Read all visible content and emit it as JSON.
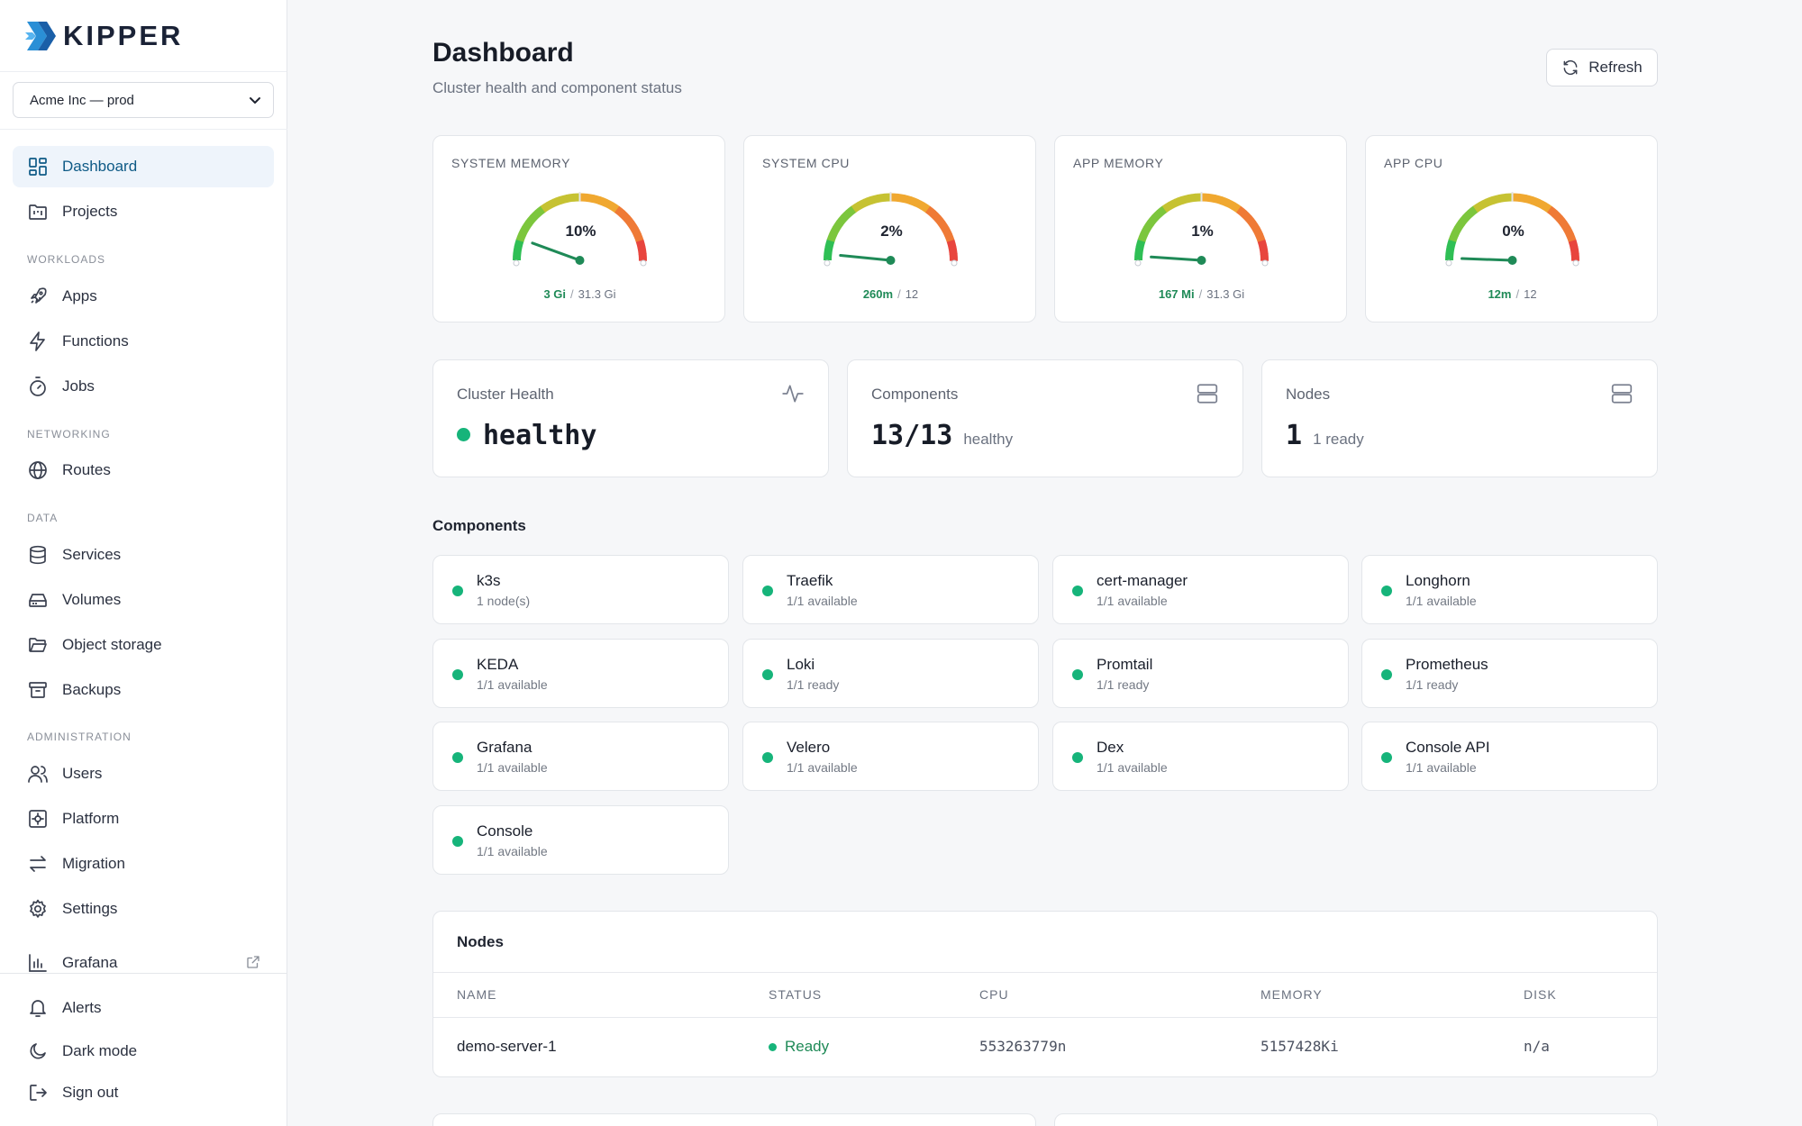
{
  "brand": {
    "name": "KIPPER",
    "logo_icon": "kipper-logo-icon"
  },
  "org_select": {
    "value": "Acme Inc — prod"
  },
  "sidebar": {
    "sections": {
      "workloads": "WORKLOADS",
      "networking": "NETWORKING",
      "data": "DATA",
      "administration": "ADMINISTRATION"
    },
    "items": [
      {
        "label": "Dashboard",
        "icon": "dashboard-icon",
        "active": true
      },
      {
        "label": "Projects",
        "icon": "folder-kanban-icon"
      },
      {
        "label": "Apps",
        "icon": "rocket-icon"
      },
      {
        "label": "Functions",
        "icon": "zap-icon"
      },
      {
        "label": "Jobs",
        "icon": "timer-icon"
      },
      {
        "label": "Routes",
        "icon": "globe-icon"
      },
      {
        "label": "Services",
        "icon": "database-icon"
      },
      {
        "label": "Volumes",
        "icon": "hard-drive-icon"
      },
      {
        "label": "Object storage",
        "icon": "folder-open-icon"
      },
      {
        "label": "Backups",
        "icon": "archive-icon"
      },
      {
        "label": "Users",
        "icon": "users-icon"
      },
      {
        "label": "Platform",
        "icon": "platform-icon"
      },
      {
        "label": "Migration",
        "icon": "arrows-left-right-icon"
      },
      {
        "label": "Settings",
        "icon": "gear-icon"
      },
      {
        "label": "Grafana",
        "icon": "bar-chart-icon",
        "external": true
      }
    ],
    "bottom": [
      {
        "label": "Alerts",
        "icon": "bell-icon"
      },
      {
        "label": "Dark mode",
        "icon": "moon-icon"
      },
      {
        "label": "Sign out",
        "icon": "sign-out-icon"
      }
    ]
  },
  "header": {
    "title": "Dashboard",
    "subtitle": "Cluster health and component status",
    "refresh_label": "Refresh"
  },
  "gauges": [
    {
      "title": "SYSTEM MEMORY",
      "percent_label": "10%",
      "percent": 10,
      "used": "3 Gi",
      "total": "31.3 Gi"
    },
    {
      "title": "SYSTEM CPU",
      "percent_label": "2%",
      "percent": 2,
      "used": "260m",
      "total": "12"
    },
    {
      "title": "APP MEMORY",
      "percent_label": "1%",
      "percent": 1,
      "used": "167 Mi",
      "total": "31.3 Gi"
    },
    {
      "title": "APP CPU",
      "percent_label": "0%",
      "percent": 0,
      "used": "12m",
      "total": "12"
    }
  ],
  "stats": {
    "cluster_health": {
      "title": "Cluster Health",
      "value": "healthy",
      "icon": "activity-icon"
    },
    "components": {
      "title": "Components",
      "value": "13/13",
      "suffix": "healthy",
      "icon": "server-icon"
    },
    "nodes": {
      "title": "Nodes",
      "value": "1",
      "suffix": "1 ready",
      "icon": "server-icon"
    }
  },
  "components": {
    "title": "Components",
    "items": [
      {
        "name": "k3s",
        "status": "1 node(s)"
      },
      {
        "name": "Traefik",
        "status": "1/1 available"
      },
      {
        "name": "cert-manager",
        "status": "1/1 available"
      },
      {
        "name": "Longhorn",
        "status": "1/1 available"
      },
      {
        "name": "KEDA",
        "status": "1/1 available"
      },
      {
        "name": "Loki",
        "status": "1/1 ready"
      },
      {
        "name": "Promtail",
        "status": "1/1 ready"
      },
      {
        "name": "Prometheus",
        "status": "1/1 ready"
      },
      {
        "name": "Grafana",
        "status": "1/1 available"
      },
      {
        "name": "Velero",
        "status": "1/1 available"
      },
      {
        "name": "Dex",
        "status": "1/1 available"
      },
      {
        "name": "Console API",
        "status": "1/1 available"
      },
      {
        "name": "Console",
        "status": "1/1 available"
      }
    ]
  },
  "nodes_table": {
    "title": "Nodes",
    "columns": [
      "NAME",
      "STATUS",
      "CPU",
      "MEMORY",
      "DISK"
    ],
    "rows": [
      {
        "name": "demo-server-1",
        "status": "Ready",
        "cpu": "553263779n",
        "memory": "5157428Ki",
        "disk": "n/a"
      }
    ]
  },
  "colors": {
    "accent": "#0e5a86",
    "healthy": "#16b47a",
    "used_text": "#1f8a57",
    "needle": "#1f8a57"
  }
}
